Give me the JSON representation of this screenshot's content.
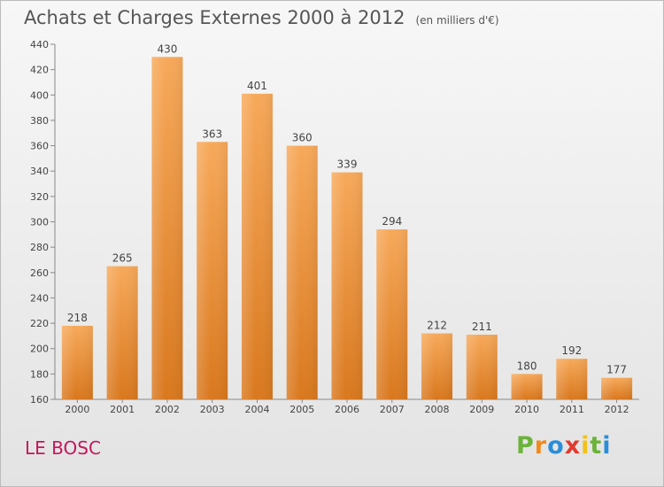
{
  "chart_data": {
    "type": "bar",
    "title": "Achats et Charges Externes 2000 à 2012",
    "subtitle": "(en milliers d'€)",
    "categories": [
      "2000",
      "2001",
      "2002",
      "2003",
      "2004",
      "2005",
      "2006",
      "2007",
      "2008",
      "2009",
      "2010",
      "2011",
      "2012"
    ],
    "values": [
      218,
      265,
      430,
      363,
      401,
      360,
      339,
      294,
      212,
      211,
      180,
      192,
      177
    ],
    "xlabel": "",
    "ylabel": "",
    "ylim": [
      160,
      440
    ],
    "yticks": [
      160,
      180,
      200,
      220,
      240,
      260,
      280,
      300,
      320,
      340,
      360,
      380,
      400,
      420,
      440
    ],
    "grid": false,
    "legend": "none",
    "colors": {
      "bar_light": "#f7a95a",
      "bar_dark": "#d9781e",
      "axis": "#888888",
      "text": "#444444"
    }
  },
  "commune": "LE BOSC",
  "brand": {
    "letters": [
      "P",
      "r",
      "o",
      "x",
      "i",
      "t",
      "i"
    ],
    "colors": [
      "#6bb33a",
      "#f08a1c",
      "#2a8ed8",
      "#e23a2e",
      "#f2c21a",
      "#6bb33a",
      "#2a8ed8"
    ]
  }
}
